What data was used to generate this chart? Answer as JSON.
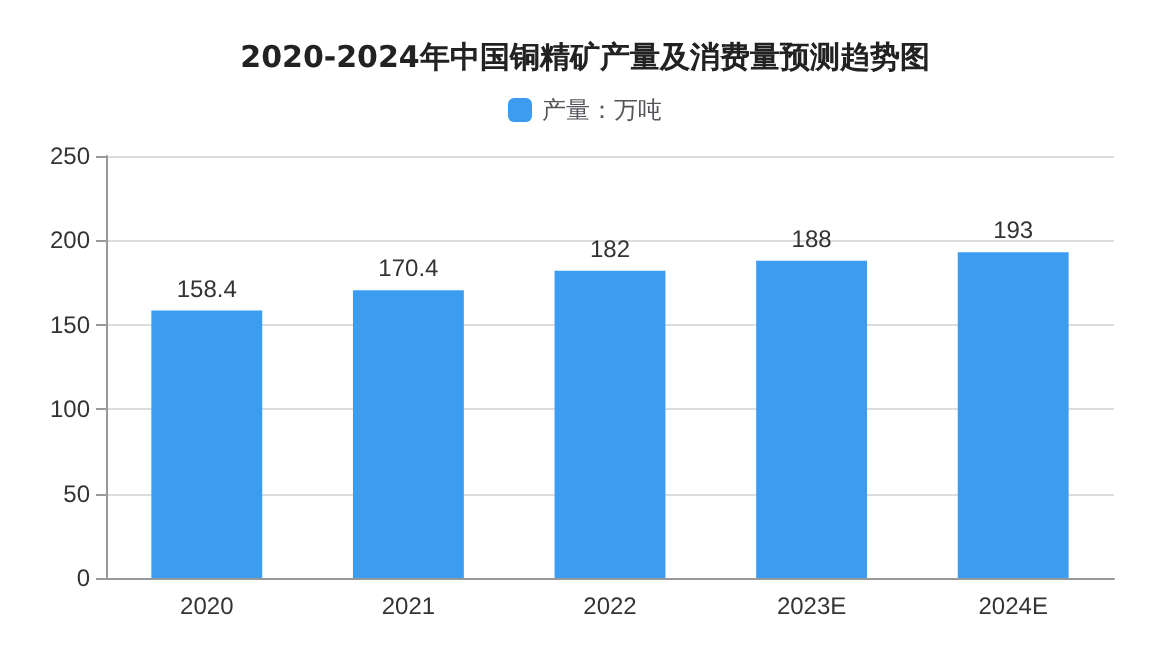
{
  "chart_data": {
    "type": "bar",
    "title": "2020-2024年中国铜精矿产量及消费量预测趋势图",
    "categories": [
      "2020",
      "2021",
      "2022",
      "2023E",
      "2024E"
    ],
    "series": [
      {
        "name": "产量：万吨",
        "color": "#3c9cf0",
        "values": [
          158.4,
          170.4,
          182,
          188,
          193
        ]
      }
    ],
    "ylim": [
      0,
      250
    ],
    "yticks": [
      0,
      50,
      100,
      150,
      200,
      250
    ],
    "grid": "y",
    "legend": "top",
    "data_labels": true
  }
}
